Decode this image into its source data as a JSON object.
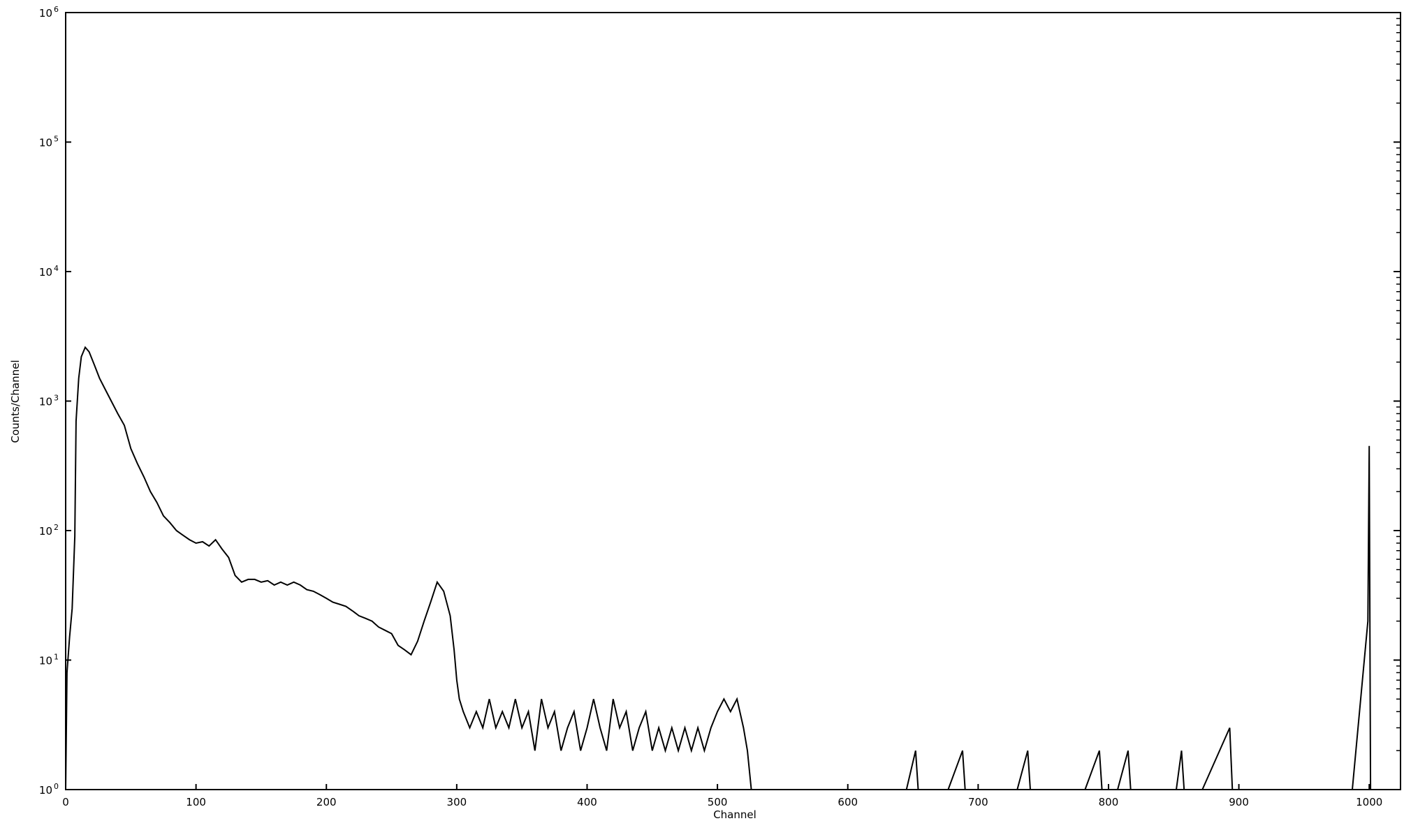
{
  "chart_data": {
    "type": "line",
    "title": "",
    "xlabel": "Channel",
    "ylabel": "Counts/Channel",
    "xlim": [
      0,
      1024
    ],
    "ylim": [
      1,
      1000000
    ],
    "y_scale": "log",
    "grid": false,
    "legend": "none",
    "line_color": "#000000",
    "x_ticks": [
      "0",
      "100",
      "200",
      "300",
      "400",
      "500",
      "600",
      "700",
      "800",
      "900",
      "1000"
    ],
    "y_ticks": [
      {
        "base": "10",
        "exp": "0"
      },
      {
        "base": "10",
        "exp": "1"
      },
      {
        "base": "10",
        "exp": "2"
      },
      {
        "base": "10",
        "exp": "3"
      },
      {
        "base": "10",
        "exp": "4"
      },
      {
        "base": "10",
        "exp": "5"
      },
      {
        "base": "10",
        "exp": "6"
      }
    ],
    "series": [
      {
        "points": [
          [
            0,
            0
          ],
          [
            1,
            8
          ],
          [
            3,
            15
          ],
          [
            5,
            25
          ],
          [
            7,
            90
          ],
          [
            8,
            700
          ],
          [
            10,
            1500
          ],
          [
            12,
            2200
          ],
          [
            15,
            2600
          ],
          [
            18,
            2400
          ],
          [
            22,
            1900
          ],
          [
            26,
            1500
          ],
          [
            30,
            1250
          ],
          [
            35,
            1000
          ],
          [
            40,
            800
          ],
          [
            45,
            650
          ],
          [
            50,
            430
          ],
          [
            55,
            330
          ],
          [
            60,
            260
          ],
          [
            65,
            200
          ],
          [
            70,
            165
          ],
          [
            75,
            130
          ],
          [
            80,
            115
          ],
          [
            85,
            100
          ],
          [
            90,
            92
          ],
          [
            95,
            85
          ],
          [
            100,
            80
          ],
          [
            105,
            82
          ],
          [
            110,
            76
          ],
          [
            115,
            85
          ],
          [
            120,
            72
          ],
          [
            125,
            62
          ],
          [
            130,
            45
          ],
          [
            135,
            40
          ],
          [
            140,
            42
          ],
          [
            145,
            42
          ],
          [
            150,
            40
          ],
          [
            155,
            41
          ],
          [
            160,
            38
          ],
          [
            165,
            40
          ],
          [
            170,
            38
          ],
          [
            175,
            40
          ],
          [
            180,
            38
          ],
          [
            185,
            35
          ],
          [
            190,
            34
          ],
          [
            195,
            32
          ],
          [
            200,
            30
          ],
          [
            205,
            28
          ],
          [
            210,
            27
          ],
          [
            215,
            26
          ],
          [
            220,
            24
          ],
          [
            225,
            22
          ],
          [
            230,
            21
          ],
          [
            235,
            20
          ],
          [
            240,
            18
          ],
          [
            245,
            17
          ],
          [
            250,
            16
          ],
          [
            255,
            13
          ],
          [
            260,
            12
          ],
          [
            265,
            11
          ],
          [
            270,
            14
          ],
          [
            275,
            20
          ],
          [
            280,
            28
          ],
          [
            285,
            40
          ],
          [
            290,
            34
          ],
          [
            295,
            22
          ],
          [
            298,
            12
          ],
          [
            300,
            7
          ],
          [
            302,
            5
          ],
          [
            305,
            4
          ],
          [
            310,
            3
          ],
          [
            315,
            4
          ],
          [
            320,
            3
          ],
          [
            325,
            5
          ],
          [
            330,
            3
          ],
          [
            335,
            4
          ],
          [
            340,
            3
          ],
          [
            345,
            5
          ],
          [
            350,
            3
          ],
          [
            355,
            4
          ],
          [
            360,
            2
          ],
          [
            365,
            5
          ],
          [
            370,
            3
          ],
          [
            375,
            4
          ],
          [
            380,
            2
          ],
          [
            385,
            3
          ],
          [
            390,
            4
          ],
          [
            395,
            2
          ],
          [
            400,
            3
          ],
          [
            405,
            5
          ],
          [
            410,
            3
          ],
          [
            415,
            2
          ],
          [
            420,
            5
          ],
          [
            425,
            3
          ],
          [
            430,
            4
          ],
          [
            435,
            2
          ],
          [
            440,
            3
          ],
          [
            445,
            4
          ],
          [
            450,
            2
          ],
          [
            455,
            3
          ],
          [
            460,
            2
          ],
          [
            465,
            3
          ],
          [
            470,
            2
          ],
          [
            475,
            3
          ],
          [
            480,
            2
          ],
          [
            485,
            3
          ],
          [
            490,
            2
          ],
          [
            495,
            3
          ],
          [
            500,
            4
          ],
          [
            505,
            5
          ],
          [
            510,
            4
          ],
          [
            515,
            5
          ],
          [
            520,
            3
          ],
          [
            523,
            2
          ],
          [
            526,
            1
          ],
          [
            530,
            1
          ],
          [
            535,
            1
          ],
          [
            540,
            0
          ],
          [
            545,
            0
          ],
          [
            560,
            1
          ],
          [
            561,
            0
          ],
          [
            575,
            1
          ],
          [
            580,
            1
          ],
          [
            585,
            0
          ],
          [
            600,
            1
          ],
          [
            605,
            0
          ],
          [
            612,
            1
          ],
          [
            615,
            0
          ],
          [
            630,
            1
          ],
          [
            640,
            1
          ],
          [
            645,
            0
          ],
          [
            652,
            2
          ],
          [
            654,
            0
          ],
          [
            660,
            1
          ],
          [
            662,
            0
          ],
          [
            675,
            1
          ],
          [
            677,
            0
          ],
          [
            688,
            2
          ],
          [
            690,
            0
          ],
          [
            700,
            1
          ],
          [
            702,
            0
          ],
          [
            725,
            1
          ],
          [
            730,
            1
          ],
          [
            738,
            2
          ],
          [
            740,
            0
          ],
          [
            750,
            1
          ],
          [
            755,
            0
          ],
          [
            765,
            1
          ],
          [
            767,
            0
          ],
          [
            780,
            1
          ],
          [
            782,
            0
          ],
          [
            793,
            2
          ],
          [
            795,
            0
          ],
          [
            805,
            1
          ],
          [
            807,
            0
          ],
          [
            815,
            2
          ],
          [
            817,
            0
          ],
          [
            825,
            1
          ],
          [
            827,
            0
          ],
          [
            850,
            1
          ],
          [
            852,
            0
          ],
          [
            856,
            2
          ],
          [
            858,
            0
          ],
          [
            870,
            1
          ],
          [
            872,
            0
          ],
          [
            893,
            3
          ],
          [
            895,
            0
          ],
          [
            905,
            1
          ],
          [
            907,
            0
          ],
          [
            915,
            1
          ],
          [
            917,
            0
          ],
          [
            935,
            1
          ],
          [
            937,
            0
          ],
          [
            950,
            1
          ],
          [
            952,
            0
          ],
          [
            965,
            1
          ],
          [
            967,
            0
          ],
          [
            985,
            1
          ],
          [
            987,
            0
          ],
          [
            999,
            20
          ],
          [
            1000,
            450
          ],
          [
            1001,
            0
          ],
          [
            1024,
            0
          ]
        ]
      }
    ]
  }
}
